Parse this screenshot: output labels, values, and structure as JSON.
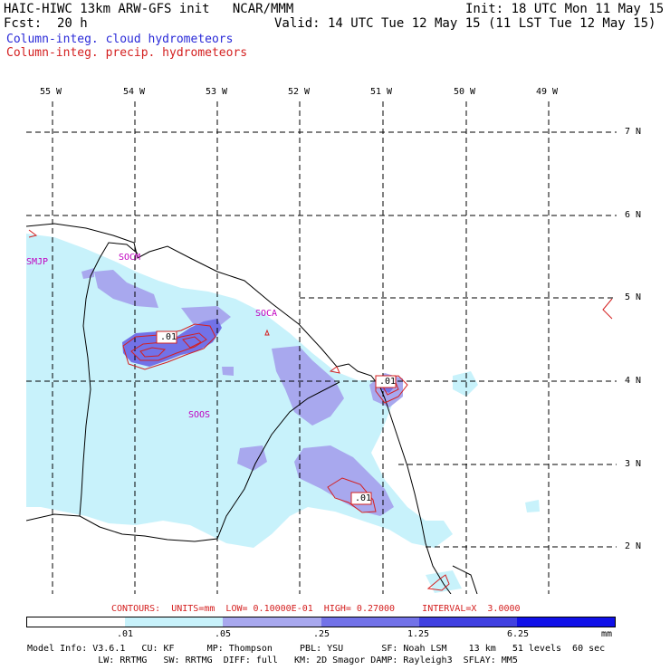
{
  "header": {
    "model_line": "HAIC-HIWC 13km ARW-GFS init   NCAR/MMM",
    "fcst_line": "Fcst:  20 h",
    "init_line": "Init: 18 UTC Mon 11 May 15",
    "valid_line": "Valid: 14 UTC Tue 12 May 15 (11 LST Tue 12 May 15)",
    "cloud_legend": "Column-integ. cloud hydrometeors",
    "precip_legend": "Column-integ. precip. hydrometeors"
  },
  "axes": {
    "lon_labels": [
      "55 W",
      "54 W",
      "53 W",
      "52 W",
      "51 W",
      "50 W",
      "49 W"
    ],
    "lat_labels": [
      "7 N",
      "6 N",
      "5 N",
      "4 N",
      "3 N",
      "2 N"
    ]
  },
  "stations": [
    "SMJP",
    "SOCM",
    "SOCA",
    "SOOS"
  ],
  "contour_labels": [
    ".01",
    ".01",
    ".01"
  ],
  "contour_info": "CONTOURS:  UNITS=mm  LOW= 0.10000E-01  HIGH= 0.27000     INTERVAL=X  3.0000",
  "colorbar": {
    "tick_labels": [
      ".01",
      ".05",
      ".25",
      "1.25",
      "6.25"
    ],
    "unit": "mm",
    "colors": [
      "#ffffff",
      "#c8f2fb",
      "#a8a8ee",
      "#7272e8",
      "#4040e0",
      "#1010e8"
    ]
  },
  "footer": {
    "line1": "Model Info: V3.6.1   CU: KF      MP: Thompson     PBL: YSU       SF: Noah LSM    13 km   51 levels  60 sec",
    "line2": "             LW: RRTMG   SW: RRTMG  DIFF: full   KM: 2D Smagor DAMP: Rayleigh3  SFLAY: MM5"
  },
  "colors": {
    "cloud_light": "#c8f2fb",
    "cloud_mid": "#a8a8ee",
    "cloud_dark": "#7272e8",
    "precip_contour": "#d42020",
    "station_text": "#c000c0"
  }
}
